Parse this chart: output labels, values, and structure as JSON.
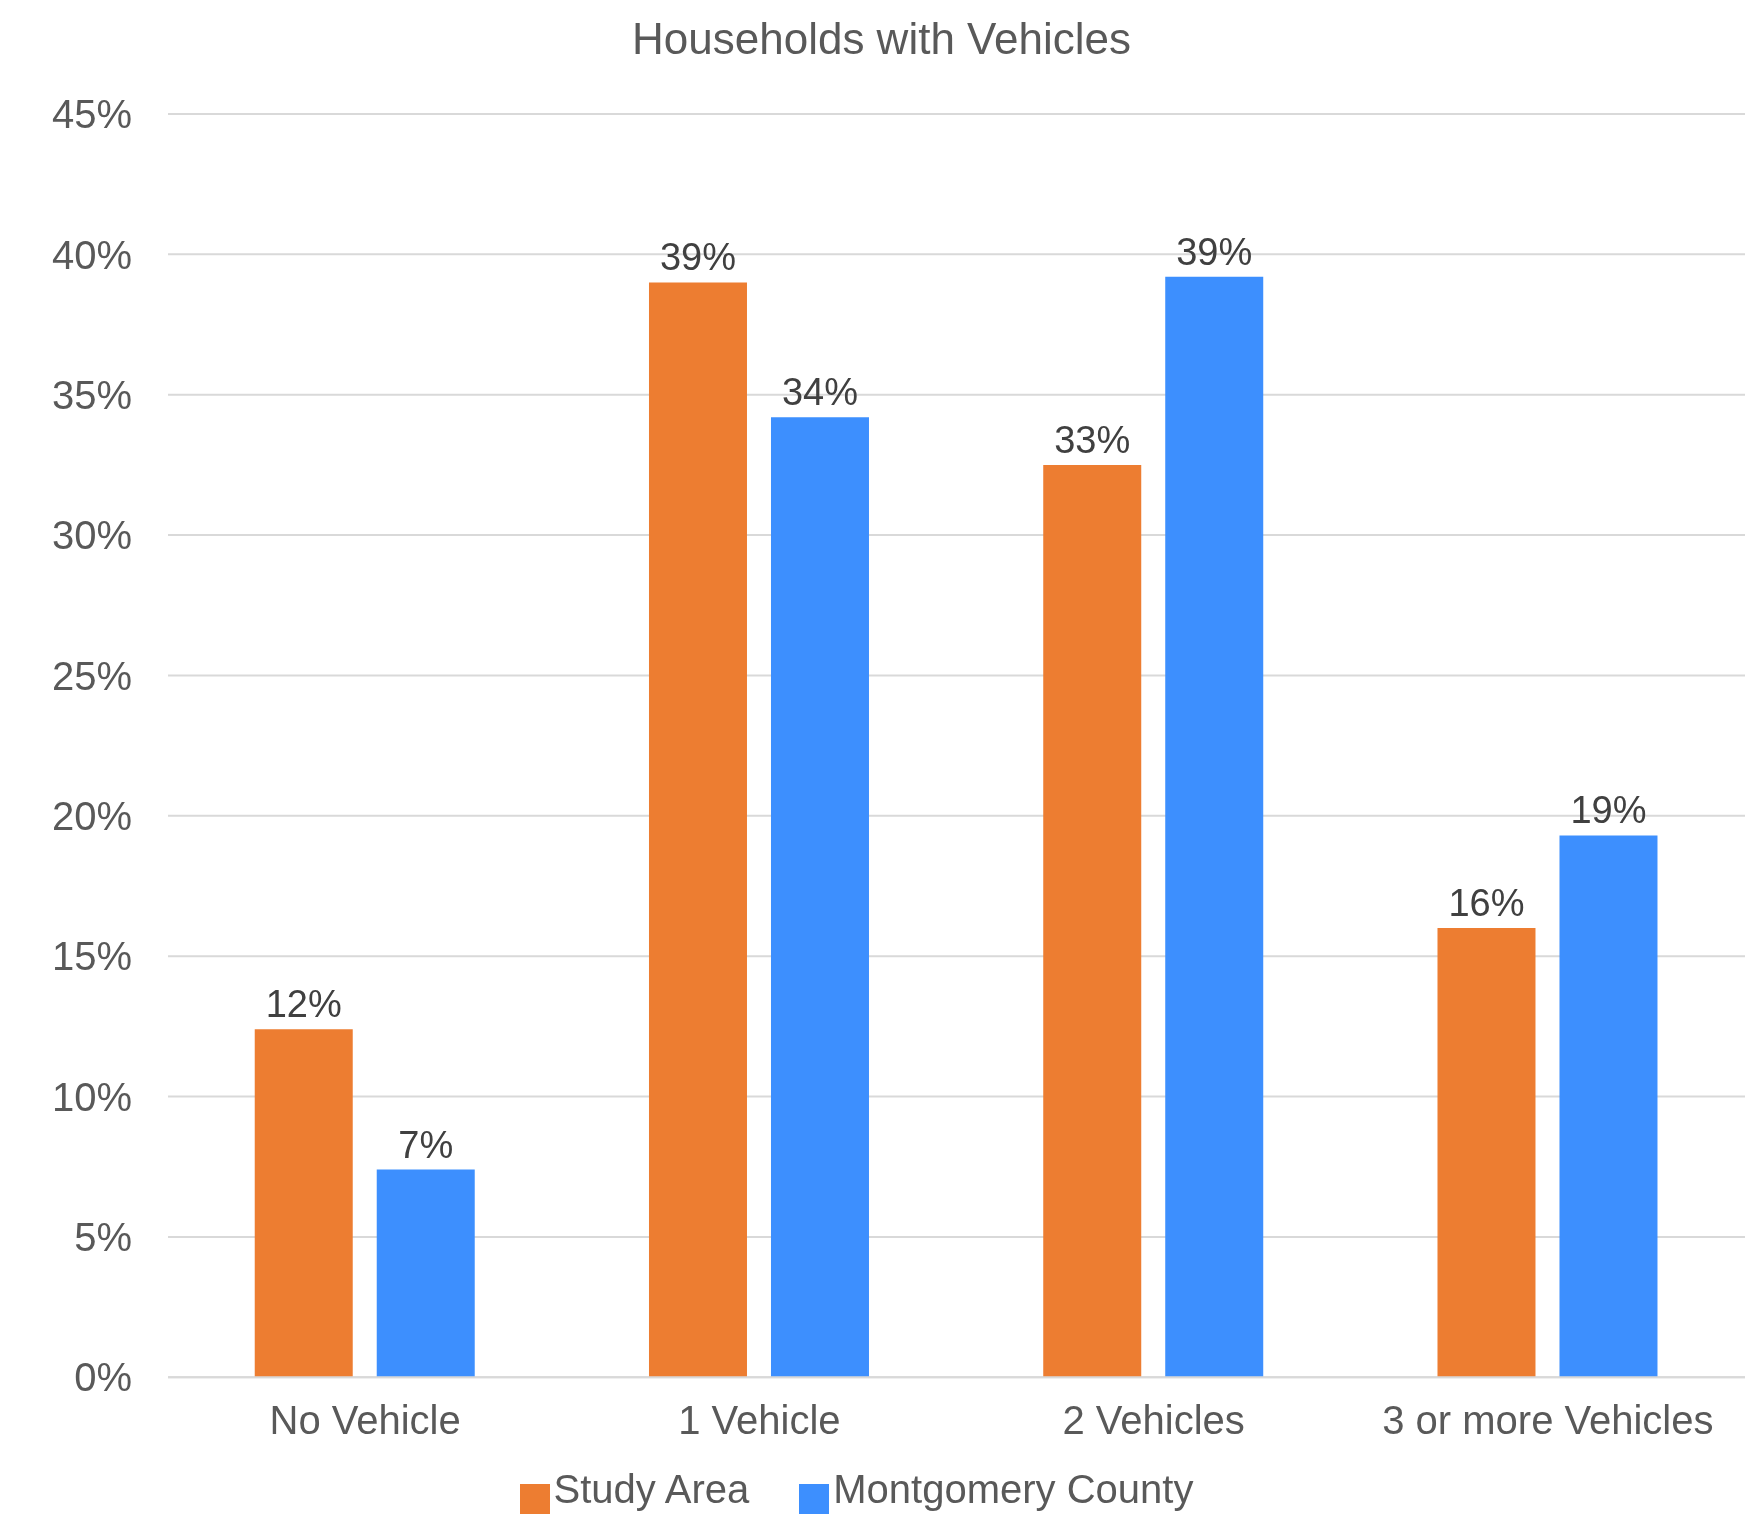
{
  "chart_data": {
    "type": "bar",
    "title": "Households with Vehicles",
    "categories": [
      "No Vehicle",
      "1 Vehicle",
      "2 Vehicles",
      "3 or more Vehicles"
    ],
    "series": [
      {
        "name": "Study Area",
        "color": "#ed7d31",
        "values": [
          12.4,
          39.0,
          32.5,
          16.0
        ],
        "value_labels": [
          "12%",
          "39%",
          "33%",
          "16%"
        ]
      },
      {
        "name": "Montgomery County",
        "color": "#3d8ffe",
        "values": [
          7.4,
          34.2,
          39.2,
          19.3
        ],
        "value_labels": [
          "7%",
          "34%",
          "39%",
          "19%"
        ]
      }
    ],
    "ylim": [
      0,
      45
    ],
    "yticks": [
      {
        "value": 0,
        "label": "0%"
      },
      {
        "value": 5,
        "label": "5%"
      },
      {
        "value": 10,
        "label": "10%"
      },
      {
        "value": 15,
        "label": "15%"
      },
      {
        "value": 20,
        "label": "20%"
      },
      {
        "value": 25,
        "label": "25%"
      },
      {
        "value": 30,
        "label": "30%"
      },
      {
        "value": 35,
        "label": "35%"
      },
      {
        "value": 40,
        "label": "40%"
      },
      {
        "value": 45,
        "label": "45%"
      }
    ],
    "grid": "y",
    "legend": "bottom"
  }
}
